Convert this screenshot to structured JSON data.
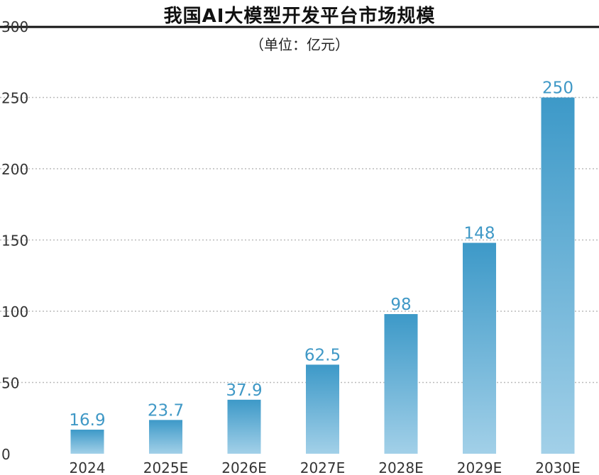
{
  "chart_data": {
    "type": "bar",
    "title": "我国AI大模型开发平台市场规模",
    "subtitle": "（单位：亿元）",
    "categories": [
      "2024",
      "2025E",
      "2026E",
      "2027E",
      "2028E",
      "2029E",
      "2030E"
    ],
    "values": [
      16.9,
      23.7,
      37.9,
      62.5,
      98,
      148,
      250
    ],
    "value_labels": [
      "16.9",
      "23.7",
      "37.9",
      "62.5",
      "98",
      "148",
      "250"
    ],
    "ylim": [
      0,
      300
    ],
    "yticks": [
      0,
      50,
      100,
      150,
      200,
      250,
      300
    ],
    "grid": true,
    "legend": "none",
    "colors": {
      "bar_top": "#3d99c8",
      "bar_bottom": "#a2d0e8",
      "label": "#3f98c6",
      "grid": "#bbbbbb"
    }
  }
}
